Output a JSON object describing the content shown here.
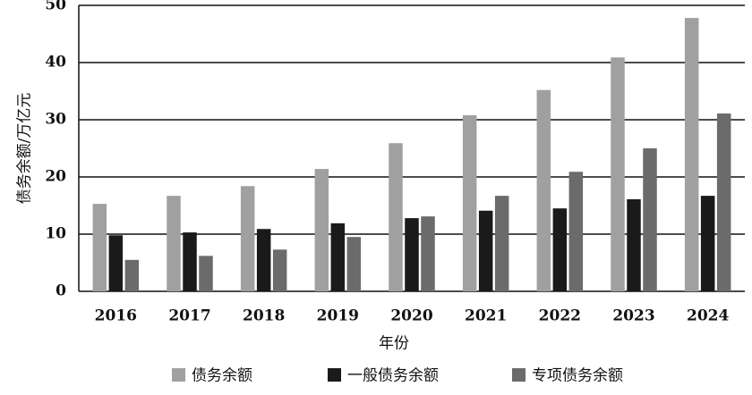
{
  "chart_data": {
    "type": "bar",
    "x_label": "年份",
    "y_label": "债务余额/万亿元",
    "categories": [
      "2016",
      "2017",
      "2018",
      "2019",
      "2020",
      "2021",
      "2022",
      "2023",
      "2024"
    ],
    "series": [
      {
        "name": "债务余额",
        "color": "#a0a0a0",
        "values": [
          15.3,
          16.7,
          18.4,
          21.4,
          25.9,
          30.8,
          35.2,
          40.9,
          47.8
        ]
      },
      {
        "name": "一般债务余额",
        "color": "#1a1a1a",
        "values": [
          9.8,
          10.3,
          10.9,
          11.9,
          12.8,
          14.1,
          14.5,
          16.1,
          16.7
        ]
      },
      {
        "name": "专项债务余额",
        "color": "#6b6b6b",
        "values": [
          5.5,
          6.2,
          7.3,
          9.5,
          13.1,
          16.7,
          20.9,
          25.0,
          31.1
        ]
      }
    ],
    "ylim": [
      0,
      50
    ],
    "yticks": [
      0,
      10,
      20,
      30,
      40,
      50
    ],
    "grid": true
  }
}
